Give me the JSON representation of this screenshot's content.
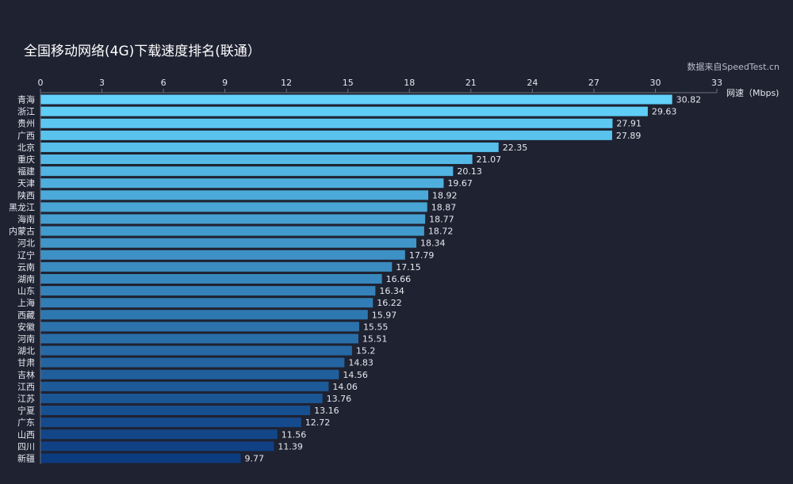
{
  "chart_data": {
    "type": "hbar",
    "title": "全国移动网络(4G)下载速度排名(联通）",
    "subtitle": "数据来自SpeedTest.cn",
    "x_label": "网速（Mbps)",
    "categories": [
      "青海",
      "浙江",
      "贵州",
      "广西",
      "北京",
      "重庆",
      "福建",
      "天津",
      "陕西",
      "黑龙江",
      "海南",
      "内蒙古",
      "河北",
      "辽宁",
      "云南",
      "湖南",
      "山东",
      "上海",
      "西藏",
      "安徽",
      "河南",
      "湖北",
      "甘肃",
      "吉林",
      "江西",
      "江苏",
      "宁夏",
      "广东",
      "山西",
      "四川",
      "新疆"
    ],
    "values": [
      30.82,
      29.63,
      27.91,
      27.89,
      22.35,
      21.07,
      20.13,
      19.67,
      18.92,
      18.87,
      18.77,
      18.72,
      18.34,
      17.79,
      17.15,
      16.66,
      16.34,
      16.22,
      15.97,
      15.55,
      15.51,
      15.2,
      14.83,
      14.56,
      14.06,
      13.76,
      13.16,
      12.72,
      11.56,
      11.39,
      9.77
    ],
    "color_range": [
      "#62d2fa",
      "#0c3c80"
    ],
    "xlim": [
      0,
      33
    ],
    "xticks": [
      0,
      3,
      6,
      9,
      12,
      15,
      18,
      21,
      24,
      27,
      30,
      33
    ],
    "grid": false
  }
}
